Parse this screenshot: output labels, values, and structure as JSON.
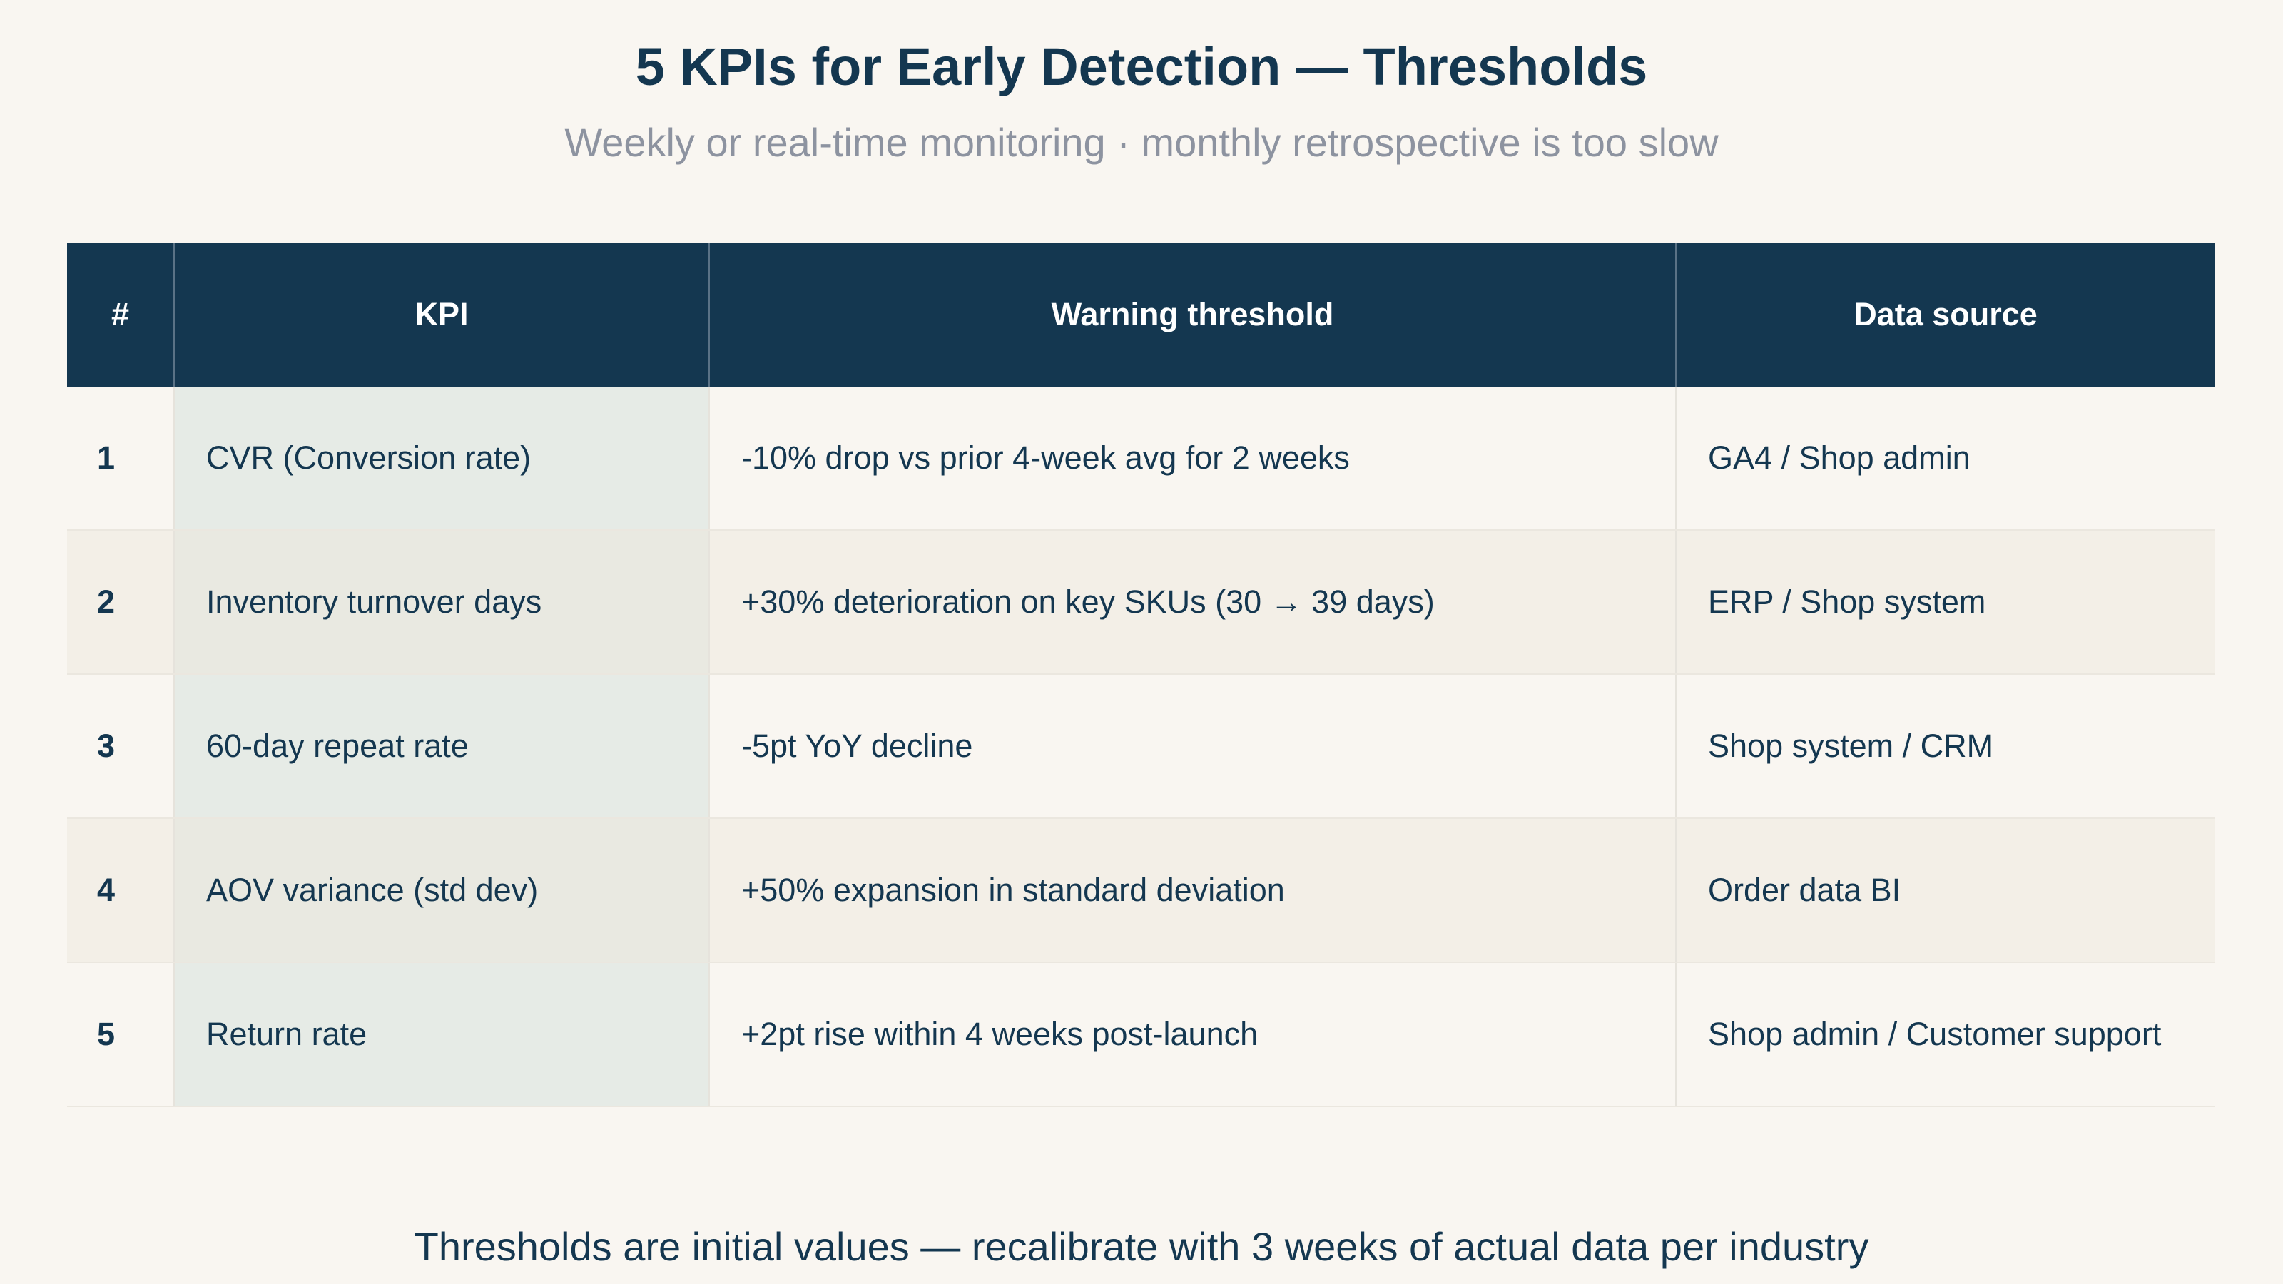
{
  "title": "5 KPIs for Early Detection — Thresholds",
  "subtitle": "Weekly or real-time monitoring · monthly retrospective is too slow",
  "table": {
    "headers": {
      "num": "#",
      "kpi": "KPI",
      "threshold": "Warning threshold",
      "source": "Data source"
    },
    "rows": [
      {
        "num": "1",
        "kpi": "CVR (Conversion rate)",
        "threshold": "-10% drop vs prior 4-week avg for 2 weeks",
        "source": "GA4 / Shop admin"
      },
      {
        "num": "2",
        "kpi": "Inventory turnover days",
        "threshold": "+30% deterioration on key SKUs (30 → 39 days)",
        "source": "ERP / Shop system"
      },
      {
        "num": "3",
        "kpi": "60-day repeat rate",
        "threshold": "-5pt YoY decline",
        "source": "Shop system / CRM"
      },
      {
        "num": "4",
        "kpi": "AOV variance (std dev)",
        "threshold": "+50% expansion in standard deviation",
        "source": "Order data BI"
      },
      {
        "num": "5",
        "kpi": "Return rate",
        "threshold": "+2pt rise within 4 weeks post-launch",
        "source": "Shop admin / Customer support"
      }
    ]
  },
  "footnote": "Thresholds are initial values — recalibrate with 3 weeks of actual data per industry"
}
